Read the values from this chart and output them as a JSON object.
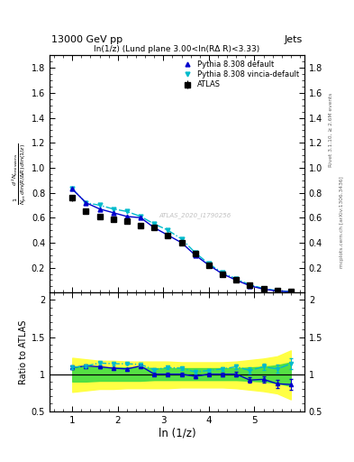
{
  "title_left": "13000 GeV pp",
  "title_right": "Jets",
  "panel_title": "ln(1/z) (Lund plane 3.00<ln(RΔ R)<3.33)",
  "ylabel_ratio": "Ratio to ATLAS",
  "xlabel": "ln (1/z)",
  "right_label_top": "Rivet 3.1.10, ≥ 2.6M events",
  "right_label_bottom": "mcplots.cern.ch [arXiv:1306.3436]",
  "watermark": "ATLAS_2020_I1790256",
  "xlim": [
    0.5,
    6.1
  ],
  "ylim_main": [
    0.0,
    1.9
  ],
  "ylim_ratio": [
    0.5,
    2.1
  ],
  "yticks_main": [
    0.2,
    0.4,
    0.6,
    0.8,
    1.0,
    1.2,
    1.4,
    1.6,
    1.8
  ],
  "yticks_ratio": [
    0.5,
    1.0,
    1.5,
    2.0
  ],
  "atlas_x": [
    1.0,
    1.3,
    1.6,
    1.9,
    2.2,
    2.5,
    2.8,
    3.1,
    3.4,
    3.7,
    4.0,
    4.3,
    4.6,
    4.9,
    5.2,
    5.5,
    5.8
  ],
  "atlas_y": [
    0.76,
    0.65,
    0.61,
    0.59,
    0.57,
    0.54,
    0.52,
    0.46,
    0.4,
    0.31,
    0.22,
    0.15,
    0.1,
    0.06,
    0.03,
    0.015,
    0.007
  ],
  "atlas_yerr": [
    0.025,
    0.018,
    0.016,
    0.015,
    0.015,
    0.014,
    0.014,
    0.014,
    0.013,
    0.012,
    0.01,
    0.008,
    0.006,
    0.004,
    0.002,
    0.001,
    0.001
  ],
  "pythia_def_x": [
    1.0,
    1.3,
    1.6,
    1.9,
    2.2,
    2.5,
    2.8,
    3.1,
    3.4,
    3.7,
    4.0,
    4.3,
    4.6,
    4.9,
    5.2,
    5.5,
    5.8
  ],
  "pythia_def_y": [
    0.83,
    0.72,
    0.67,
    0.64,
    0.61,
    0.6,
    0.52,
    0.46,
    0.4,
    0.3,
    0.22,
    0.15,
    0.1,
    0.055,
    0.028,
    0.013,
    0.006
  ],
  "pythia_vincia_x": [
    1.0,
    1.3,
    1.6,
    1.9,
    2.2,
    2.5,
    2.8,
    3.1,
    3.4,
    3.7,
    4.0,
    4.3,
    4.6,
    4.9,
    5.2,
    5.5,
    5.8
  ],
  "pythia_vincia_y": [
    0.83,
    0.72,
    0.7,
    0.67,
    0.65,
    0.61,
    0.55,
    0.5,
    0.43,
    0.32,
    0.23,
    0.16,
    0.11,
    0.063,
    0.033,
    0.016,
    0.008
  ],
  "ratio_def_y": [
    1.09,
    1.11,
    1.1,
    1.08,
    1.07,
    1.11,
    1.0,
    1.0,
    1.0,
    0.97,
    1.0,
    1.0,
    1.0,
    0.92,
    0.93,
    0.87,
    0.86
  ],
  "ratio_vincia_y": [
    1.09,
    1.11,
    1.15,
    1.14,
    1.14,
    1.13,
    1.06,
    1.09,
    1.08,
    1.03,
    1.05,
    1.07,
    1.1,
    1.05,
    1.1,
    1.07,
    1.14
  ],
  "ratio_def_err": [
    0.025,
    0.02,
    0.018,
    0.017,
    0.016,
    0.016,
    0.016,
    0.018,
    0.018,
    0.02,
    0.022,
    0.025,
    0.03,
    0.038,
    0.045,
    0.055,
    0.07
  ],
  "ratio_vincia_err": [
    0.025,
    0.02,
    0.018,
    0.017,
    0.016,
    0.016,
    0.016,
    0.018,
    0.018,
    0.02,
    0.022,
    0.025,
    0.03,
    0.038,
    0.045,
    0.055,
    0.07
  ],
  "band_yellow_upper": [
    1.22,
    1.2,
    1.18,
    1.18,
    1.17,
    1.17,
    1.17,
    1.17,
    1.16,
    1.16,
    1.16,
    1.16,
    1.17,
    1.19,
    1.21,
    1.24,
    1.32
  ],
  "band_yellow_lower": [
    0.76,
    0.78,
    0.8,
    0.8,
    0.81,
    0.81,
    0.81,
    0.81,
    0.82,
    0.82,
    0.82,
    0.82,
    0.81,
    0.79,
    0.77,
    0.74,
    0.66
  ],
  "band_green_upper": [
    1.1,
    1.1,
    1.09,
    1.09,
    1.09,
    1.09,
    1.08,
    1.08,
    1.08,
    1.08,
    1.08,
    1.08,
    1.08,
    1.09,
    1.1,
    1.12,
    1.16
  ],
  "band_green_lower": [
    0.9,
    0.9,
    0.91,
    0.91,
    0.91,
    0.91,
    0.92,
    0.92,
    0.92,
    0.92,
    0.92,
    0.92,
    0.92,
    0.91,
    0.9,
    0.88,
    0.84
  ],
  "color_atlas": "#000000",
  "color_pythia_def": "#0000cc",
  "color_pythia_vincia": "#00bbcc",
  "color_yellow": "#ffff44",
  "color_green": "#44dd44",
  "bg_color": "#ffffff"
}
